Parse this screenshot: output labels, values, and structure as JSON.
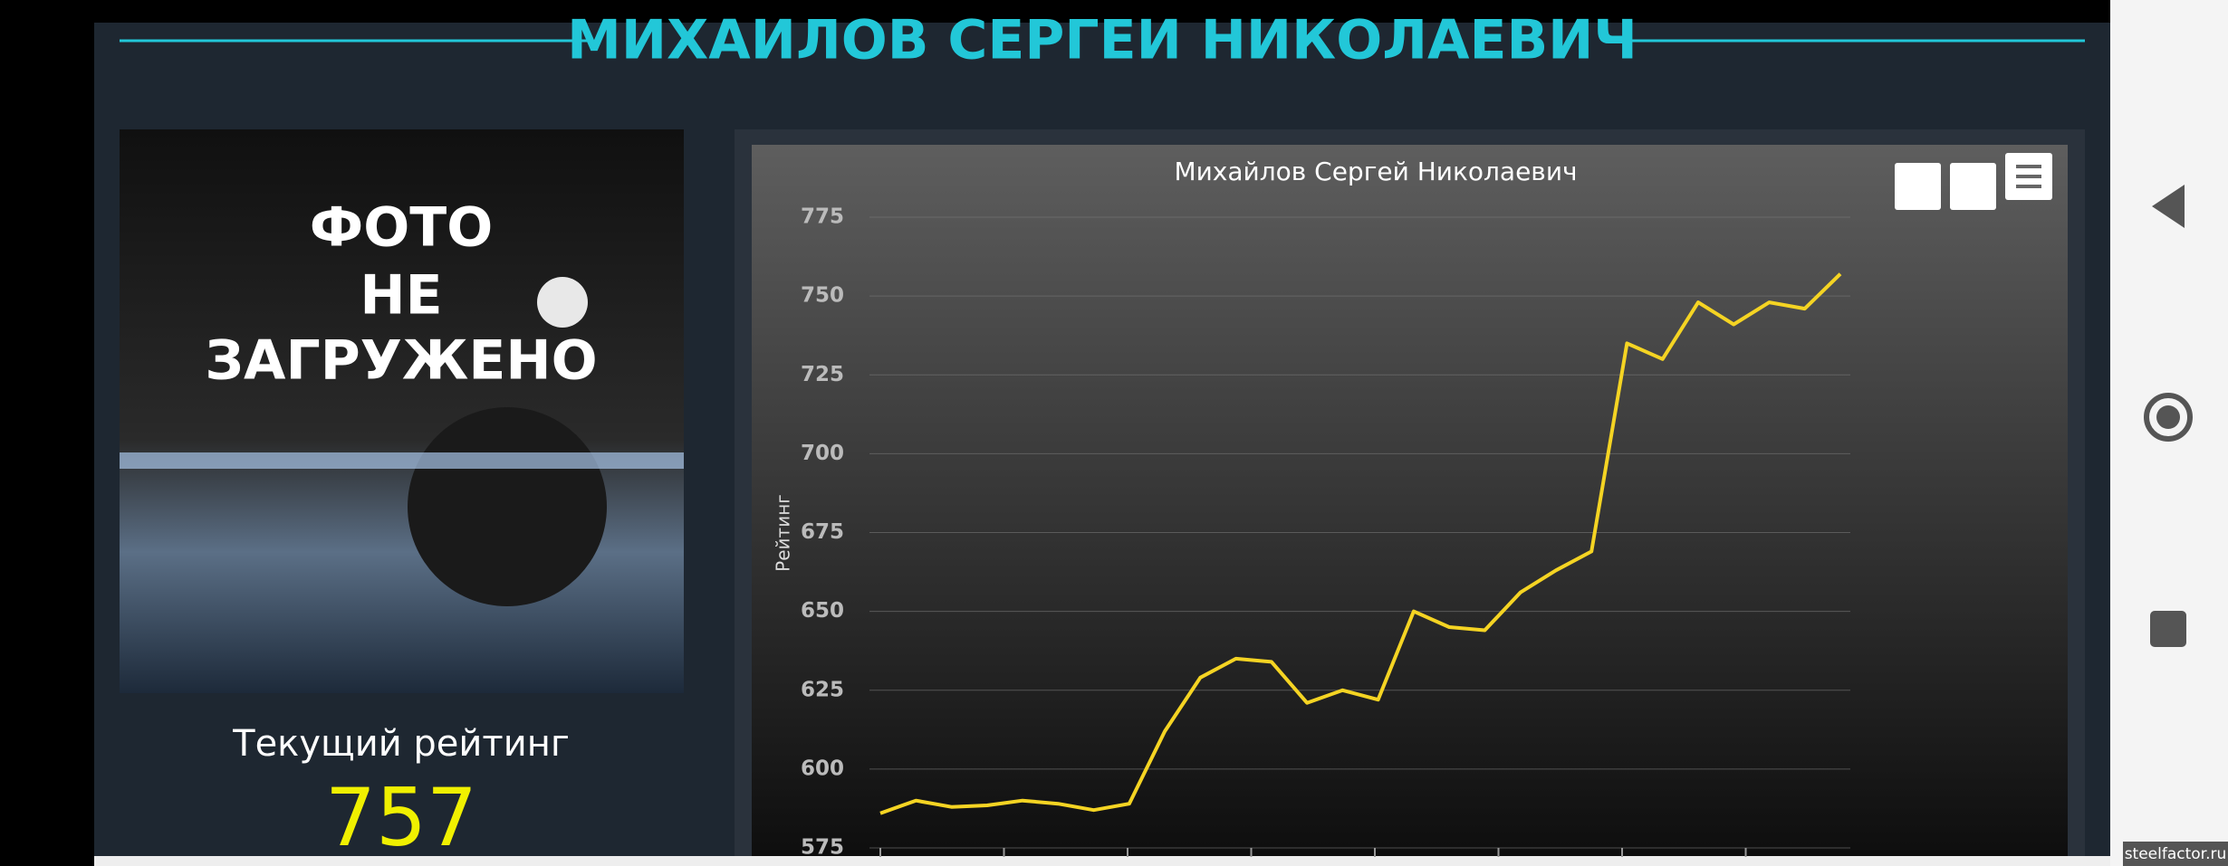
{
  "header": {
    "title": "МИХАИЛОВ СЕРГЕИ НИКОЛАЕВИЧ"
  },
  "photo": {
    "lines": [
      "ФОТО",
      "НЕ",
      "ЗАГРУЖЕНО"
    ]
  },
  "rating": {
    "label": "Текущий рейтинг",
    "value": 757
  },
  "chart_data": {
    "type": "line",
    "title": "Михайлов Сергей Николаевич",
    "y_label": "Рейтинг",
    "values": [
      586,
      590,
      588,
      588.5,
      590,
      589,
      587,
      589,
      612,
      629,
      635,
      634,
      621,
      625,
      622,
      650,
      645,
      644,
      656,
      663,
      669,
      735,
      730,
      748,
      741,
      748,
      746,
      757
    ],
    "color": "#f5d423",
    "ylim": [
      575,
      775
    ],
    "yticks": [
      575,
      600,
      625,
      650,
      675,
      700,
      725,
      750,
      775
    ],
    "grid": true
  },
  "watermark": "steelfactor.ru"
}
